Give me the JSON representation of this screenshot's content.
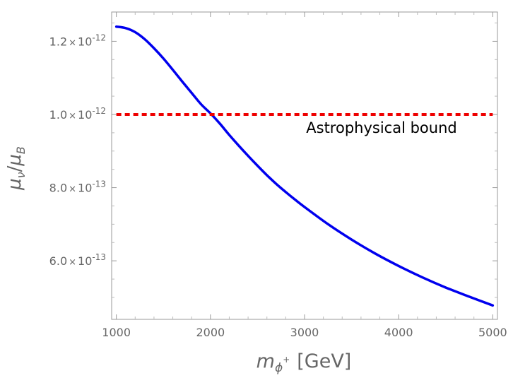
{
  "chart_data": {
    "type": "line",
    "x_range": [
      950,
      5050
    ],
    "y_range": [
      4.4e-13,
      1.28e-12
    ],
    "y_grid_lines": false,
    "x_ticks": {
      "major": [
        1000,
        2000,
        3000,
        4000,
        5000
      ],
      "labels": [
        "1000",
        "2000",
        "3000",
        "4000",
        "5000"
      ],
      "minor": [
        1200,
        1400,
        1600,
        1800,
        2200,
        2400,
        2600,
        2800,
        3200,
        3400,
        3600,
        3800,
        4200,
        4400,
        4600,
        4800
      ]
    },
    "y_ticks": {
      "major": [
        6e-13,
        8e-13,
        1e-12,
        1.2e-12
      ],
      "mantissas": [
        "6.0",
        "8.0",
        "1.0",
        "1.2"
      ],
      "exponents": [
        "-13",
        "-13",
        "-12",
        "-12"
      ],
      "times_symbol": "×",
      "base": "10",
      "minor": [
        5e-13,
        5.5e-13,
        6.5e-13,
        7e-13,
        7.5e-13,
        8.5e-13,
        9e-13,
        9.5e-13,
        1.05e-12,
        1.1e-12,
        1.15e-12,
        1.25e-12
      ]
    },
    "xlabel": {
      "main": "m",
      "sub": "ϕ",
      "sup": "+",
      "unit": "[GeV]"
    },
    "ylabel": {
      "num": "μ",
      "num_sub": "ν",
      "slash": "/",
      "den": "μ",
      "den_sub": "B"
    },
    "series": [
      {
        "style": "solid",
        "color": "#0000ee",
        "x": [
          1000,
          1100,
          1200,
          1300,
          1400,
          1500,
          1600,
          1700,
          1800,
          1900,
          2000,
          2100,
          2200,
          2300,
          2400,
          2500,
          2600,
          2700,
          2800,
          2900,
          3000,
          3250,
          3500,
          3750,
          4000,
          4250,
          4500,
          4750,
          5000
        ],
        "y": [
          1.24e-12,
          1.236e-12,
          1.225e-12,
          1.206e-12,
          1.181e-12,
          1.153e-12,
          1.122e-12,
          1.09e-12,
          1.059e-12,
          1.028e-12,
          1.003e-12,
          9.75e-13,
          9.44e-13,
          9.15e-13,
          8.87e-13,
          8.6e-13,
          8.34e-13,
          8.1e-13,
          7.88e-13,
          7.67e-13,
          7.47e-13,
          7e-13,
          6.58e-13,
          6.2e-13,
          5.86e-13,
          5.55e-13,
          5.27e-13,
          5.02e-13,
          4.78e-13
        ]
      },
      {
        "style": "dashed",
        "color": "#ee0000",
        "x": [
          1000,
          5000
        ],
        "y": [
          1e-12,
          1e-12
        ]
      }
    ],
    "annotations": [
      {
        "text": "Astrophysical bound",
        "x": 4620,
        "y": 9.5e-13,
        "anchor": "end"
      }
    ]
  }
}
